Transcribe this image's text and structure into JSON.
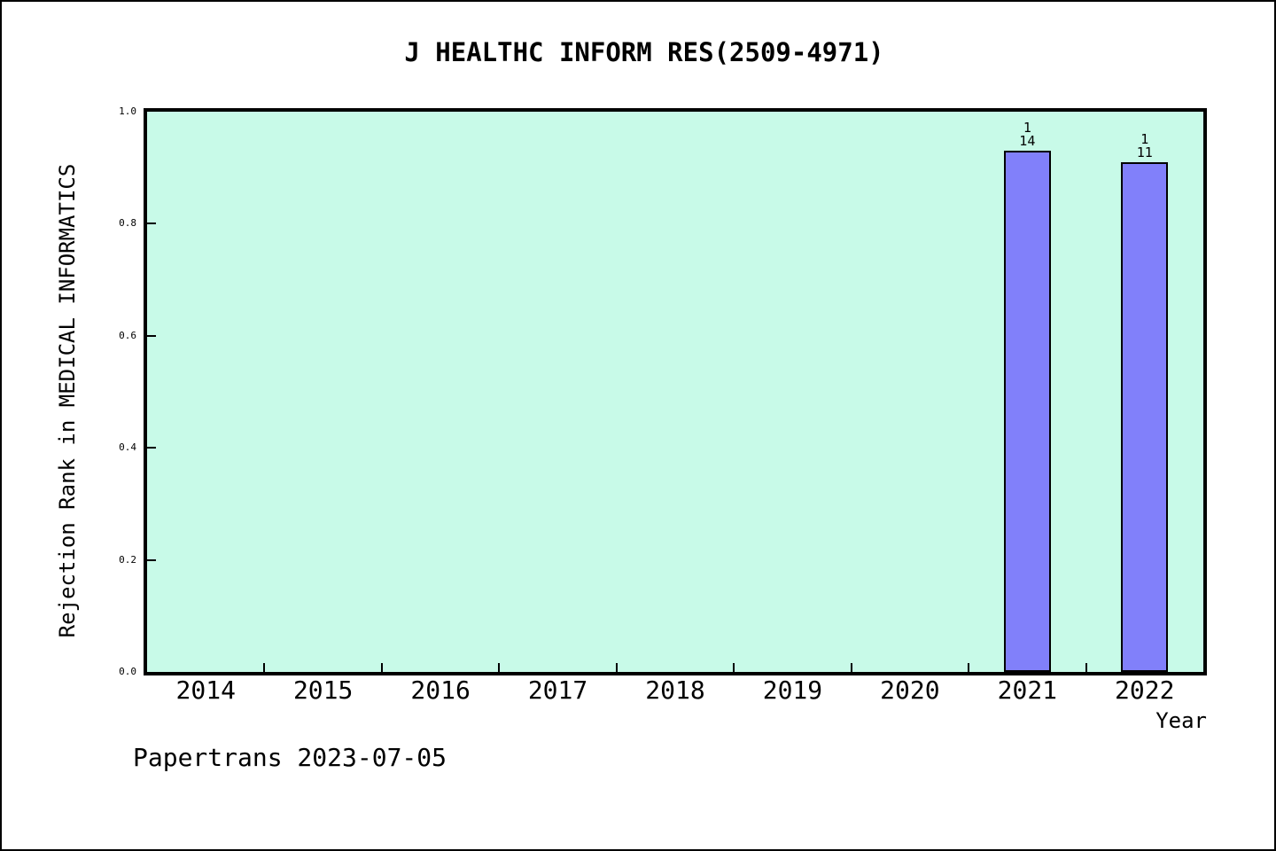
{
  "page": {
    "footer": "Papertrans 2023-07-05"
  },
  "chart_data": {
    "type": "bar",
    "title": "J HEALTHC INFORM RES(2509-4971)",
    "xlabel": "Year",
    "ylabel": "Rejection Rank in MEDICAL INFORMATICS",
    "categories": [
      "2014",
      "2015",
      "2016",
      "2017",
      "2018",
      "2019",
      "2020",
      "2021",
      "2022"
    ],
    "values": [
      null,
      null,
      null,
      null,
      null,
      null,
      null,
      0.93,
      0.91
    ],
    "annotations": [
      {
        "category": "2021",
        "lines": [
          "1",
          "14"
        ]
      },
      {
        "category": "2022",
        "lines": [
          "1",
          "11"
        ]
      }
    ],
    "ylim": [
      0.0,
      1.0
    ],
    "yticks": [
      "0.0",
      "0.2",
      "0.4",
      "0.6",
      "0.8",
      "1.0"
    ],
    "ytick_values": [
      0.0,
      0.2,
      0.4,
      0.6,
      0.8,
      1.0
    ],
    "grid": false,
    "legend": null,
    "colors": {
      "bar_fill": "#8180fa",
      "bar_border": "#000000",
      "plot_bg": "#c8fae8",
      "fig_bg": "#ffffff",
      "axis": "#000000"
    }
  }
}
